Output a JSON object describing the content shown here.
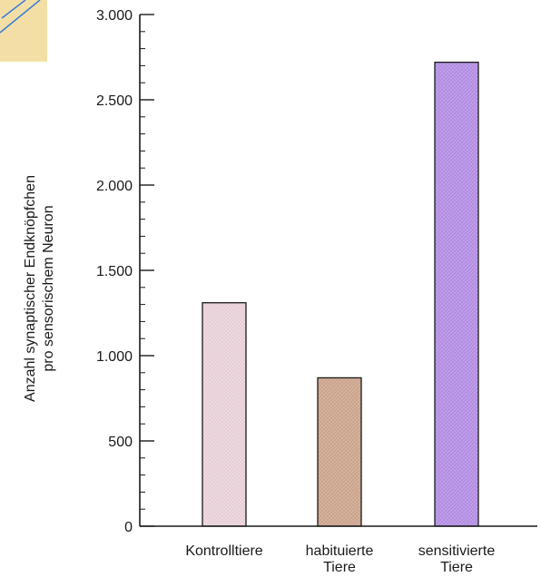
{
  "chart_data": {
    "type": "bar",
    "categories": [
      [
        "Kontrolltiere"
      ],
      [
        "habituierte",
        "Tiere"
      ],
      [
        "sensitivierte",
        "Tiere"
      ]
    ],
    "values": [
      1310,
      870,
      2720
    ],
    "bar_colors": [
      "#ecd3dc",
      "#cfa68f",
      "#b690e6"
    ],
    "ylabel_lines": [
      "Anzahl synaptischer Endknöpfchen",
      "pro sensorischem Neuron"
    ],
    "ylim": [
      0,
      3000
    ],
    "yticks": [
      0,
      500,
      1000,
      1500,
      2000,
      2500,
      3000
    ],
    "ytick_labels": [
      "0",
      "500",
      "1.000",
      "1.500",
      "2.000",
      "2.500",
      "3.000"
    ],
    "minor_tick_step": 100,
    "grid": false,
    "legend": "none"
  },
  "decor": {
    "corner_color": "#f3dfa6",
    "stripe_color": "#3a7bd5"
  }
}
